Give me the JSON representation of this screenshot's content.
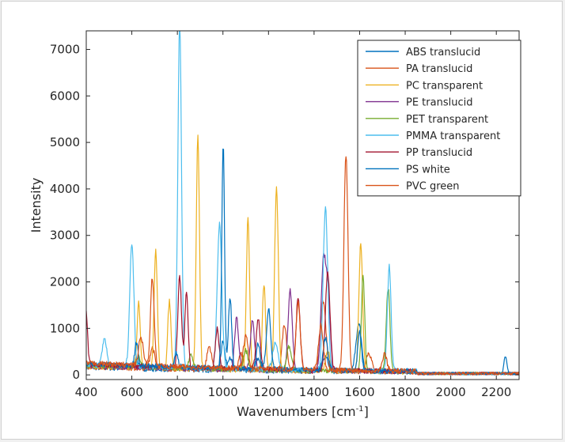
{
  "chart_data": {
    "type": "line",
    "xlabel": "Wavenumbers [cm",
    "xlabel_sup": "-1",
    "xlabel_close": "]",
    "ylabel": "Intensity",
    "xlim": [
      400,
      2300
    ],
    "ylim": [
      -100,
      7400
    ],
    "xticks": [
      400,
      600,
      800,
      1000,
      1200,
      1400,
      1600,
      1800,
      2000,
      2200
    ],
    "yticks": [
      0,
      1000,
      2000,
      3000,
      4000,
      5000,
      6000,
      7000
    ],
    "legend_position": "top-right",
    "grid": false,
    "series": [
      {
        "name": "ABS translucid",
        "color": "#0072BD",
        "peaks": [
          [
            620,
            200,
            10
          ],
          [
            1000,
            650,
            8
          ],
          [
            1030,
            300,
            8
          ],
          [
            1155,
            250,
            10
          ],
          [
            1450,
            350,
            12
          ],
          [
            1600,
            900,
            10
          ],
          [
            1585,
            400,
            8
          ],
          [
            2240,
            380,
            6
          ]
        ]
      },
      {
        "name": "PA translucid",
        "color": "#D95319",
        "peaks": [
          [
            690,
            450,
            10
          ],
          [
            940,
            500,
            10
          ],
          [
            1080,
            350,
            10
          ],
          [
            1270,
            1000,
            10
          ],
          [
            1440,
            1500,
            12
          ],
          [
            1540,
            4650,
            9
          ],
          [
            1640,
            400,
            12
          ]
        ]
      },
      {
        "name": "PC transparent",
        "color": "#EDB120",
        "peaks": [
          [
            630,
            1400,
            7
          ],
          [
            705,
            2550,
            7
          ],
          [
            765,
            1450,
            7
          ],
          [
            890,
            5000,
            7
          ],
          [
            1110,
            3300,
            7
          ],
          [
            1180,
            1850,
            7
          ],
          [
            1235,
            3950,
            8
          ],
          [
            1605,
            2750,
            8
          ],
          [
            1460,
            400,
            10
          ]
        ]
      },
      {
        "name": "PE translucid",
        "color": "#7E2F8E",
        "peaks": [
          [
            1060,
            1100,
            9
          ],
          [
            1130,
            1050,
            9
          ],
          [
            1295,
            1750,
            9
          ],
          [
            1440,
            2200,
            10
          ],
          [
            1460,
            1700,
            10
          ]
        ]
      },
      {
        "name": "PET transparent",
        "color": "#77AC30",
        "peaks": [
          [
            630,
            250,
            8
          ],
          [
            860,
            300,
            8
          ],
          [
            1100,
            400,
            10
          ],
          [
            1290,
            500,
            10
          ],
          [
            1615,
            2100,
            7
          ],
          [
            1725,
            1800,
            8
          ]
        ]
      },
      {
        "name": "PMMA transparent",
        "color": "#4DBEEE",
        "peaks": [
          [
            480,
            600,
            9
          ],
          [
            600,
            2650,
            9
          ],
          [
            810,
            7400,
            8
          ],
          [
            985,
            3100,
            10
          ],
          [
            1230,
            550,
            12
          ],
          [
            1450,
            3500,
            10
          ],
          [
            1730,
            2250,
            8
          ]
        ]
      },
      {
        "name": "PP translucid",
        "color": "#A2142F",
        "peaks": [
          [
            400,
            1100,
            6
          ],
          [
            810,
            1950,
            8
          ],
          [
            840,
            1650,
            7
          ],
          [
            975,
            850,
            8
          ],
          [
            1155,
            1050,
            9
          ],
          [
            1330,
            1550,
            9
          ],
          [
            1460,
            2100,
            10
          ]
        ]
      },
      {
        "name": "PS white",
        "color": "#0072BD",
        "peaks": [
          [
            620,
            500,
            7
          ],
          [
            795,
            300,
            8
          ],
          [
            1001,
            4800,
            6
          ],
          [
            1031,
            1550,
            7
          ],
          [
            1155,
            550,
            8
          ],
          [
            1200,
            1300,
            9
          ],
          [
            1450,
            700,
            10
          ],
          [
            1600,
            850,
            8
          ]
        ]
      },
      {
        "name": "PVC green",
        "color": "#D95319",
        "peaks": [
          [
            360,
            900,
            10
          ],
          [
            640,
            600,
            10
          ],
          [
            690,
            1900,
            8
          ],
          [
            1100,
            700,
            10
          ],
          [
            1330,
            1450,
            9
          ],
          [
            1430,
            950,
            10
          ],
          [
            1710,
            350,
            10
          ]
        ]
      }
    ]
  }
}
